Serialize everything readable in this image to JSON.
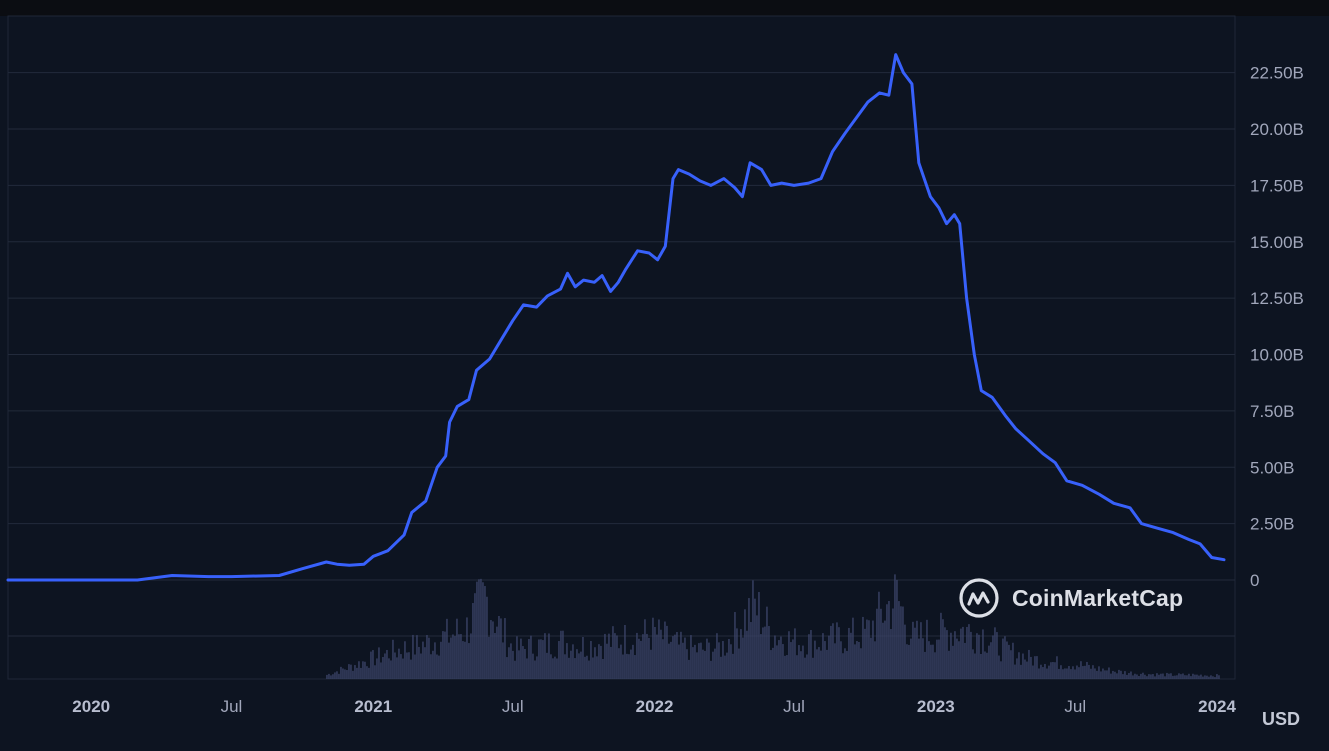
{
  "brand": {
    "watermark_text": "CoinMarketCap",
    "logo_icon": "coinmarketcap-logo-icon"
  },
  "currency_label": "USD",
  "colors": {
    "background": "#0d1421",
    "line": "#3861fb",
    "volume": "#3a4366",
    "grid": "#222a3b",
    "text": "#a1a7bb"
  },
  "chart_data": {
    "type": "line",
    "title": "",
    "xlabel": "",
    "ylabel": "",
    "y_unit": "USD",
    "ylim": [
      0,
      24000000000
    ],
    "x_range": [
      "2019-09-15",
      "2024-01-10"
    ],
    "grid": true,
    "y_ticks": [
      {
        "value": 0,
        "label": "0"
      },
      {
        "value": 2500000000,
        "label": "2.50B"
      },
      {
        "value": 5000000000,
        "label": "5.00B"
      },
      {
        "value": 7500000000,
        "label": "7.50B"
      },
      {
        "value": 10000000000,
        "label": "10.00B"
      },
      {
        "value": 12500000000,
        "label": "12.50B"
      },
      {
        "value": 15000000000,
        "label": "15.00B"
      },
      {
        "value": 17500000000,
        "label": "17.50B"
      },
      {
        "value": 20000000000,
        "label": "20.00B"
      },
      {
        "value": 22500000000,
        "label": "22.50B"
      }
    ],
    "x_ticks": [
      {
        "date": "2020-01-01",
        "label": "2020",
        "major": true
      },
      {
        "date": "2020-07-01",
        "label": "Jul",
        "major": false
      },
      {
        "date": "2021-01-01",
        "label": "2021",
        "major": true
      },
      {
        "date": "2021-07-01",
        "label": "Jul",
        "major": false
      },
      {
        "date": "2022-01-01",
        "label": "2022",
        "major": true
      },
      {
        "date": "2022-07-01",
        "label": "Jul",
        "major": false
      },
      {
        "date": "2023-01-01",
        "label": "2023",
        "major": true
      },
      {
        "date": "2023-07-01",
        "label": "Jul",
        "major": false
      },
      {
        "date": "2024-01-01",
        "label": "2024",
        "major": true
      }
    ],
    "series": [
      {
        "values": [
          [
            "2019-09-15",
            0.0
          ],
          [
            "2019-12-01",
            0.0
          ],
          [
            "2020-03-01",
            0.0
          ],
          [
            "2020-04-15",
            0.2
          ],
          [
            "2020-06-01",
            0.15
          ],
          [
            "2020-07-01",
            0.15
          ],
          [
            "2020-09-01",
            0.2
          ],
          [
            "2020-10-01",
            0.5
          ],
          [
            "2020-11-01",
            0.8
          ],
          [
            "2020-11-15",
            0.7
          ],
          [
            "2020-12-01",
            0.65
          ],
          [
            "2020-12-20",
            0.7
          ],
          [
            "2021-01-01",
            1.05
          ],
          [
            "2021-01-20",
            1.3
          ],
          [
            "2021-02-10",
            2.0
          ],
          [
            "2021-02-20",
            3.0
          ],
          [
            "2021-03-10",
            3.5
          ],
          [
            "2021-03-25",
            5.0
          ],
          [
            "2021-04-05",
            5.5
          ],
          [
            "2021-04-10",
            7.0
          ],
          [
            "2021-04-20",
            7.7
          ],
          [
            "2021-05-05",
            8.0
          ],
          [
            "2021-05-15",
            9.3
          ],
          [
            "2021-06-01",
            9.8
          ],
          [
            "2021-06-15",
            10.6
          ],
          [
            "2021-07-01",
            11.5
          ],
          [
            "2021-07-15",
            12.2
          ],
          [
            "2021-08-01",
            12.1
          ],
          [
            "2021-08-15",
            12.6
          ],
          [
            "2021-09-01",
            12.9
          ],
          [
            "2021-09-10",
            13.6
          ],
          [
            "2021-09-20",
            13.0
          ],
          [
            "2021-10-01",
            13.3
          ],
          [
            "2021-10-15",
            13.2
          ],
          [
            "2021-10-25",
            13.5
          ],
          [
            "2021-11-05",
            12.8
          ],
          [
            "2021-11-15",
            13.2
          ],
          [
            "2021-11-25",
            13.8
          ],
          [
            "2021-12-10",
            14.6
          ],
          [
            "2021-12-25",
            14.5
          ],
          [
            "2022-01-05",
            14.2
          ],
          [
            "2022-01-15",
            14.8
          ],
          [
            "2022-01-25",
            17.8
          ],
          [
            "2022-02-01",
            18.2
          ],
          [
            "2022-02-15",
            18.0
          ],
          [
            "2022-03-01",
            17.7
          ],
          [
            "2022-03-15",
            17.5
          ],
          [
            "2022-04-01",
            17.8
          ],
          [
            "2022-04-15",
            17.4
          ],
          [
            "2022-04-25",
            17.0
          ],
          [
            "2022-05-05",
            18.5
          ],
          [
            "2022-05-20",
            18.2
          ],
          [
            "2022-06-01",
            17.5
          ],
          [
            "2022-06-15",
            17.6
          ],
          [
            "2022-07-01",
            17.5
          ],
          [
            "2022-07-20",
            17.6
          ],
          [
            "2022-08-05",
            17.8
          ],
          [
            "2022-08-20",
            19.0
          ],
          [
            "2022-09-05",
            19.8
          ],
          [
            "2022-09-20",
            20.5
          ],
          [
            "2022-10-05",
            21.2
          ],
          [
            "2022-10-20",
            21.6
          ],
          [
            "2022-11-01",
            21.5
          ],
          [
            "2022-11-10",
            23.3
          ],
          [
            "2022-11-20",
            22.5
          ],
          [
            "2022-12-01",
            22.0
          ],
          [
            "2022-12-10",
            18.5
          ],
          [
            "2022-12-25",
            17.0
          ],
          [
            "2023-01-05",
            16.5
          ],
          [
            "2023-01-15",
            15.8
          ],
          [
            "2023-01-25",
            16.2
          ],
          [
            "2023-02-01",
            15.8
          ],
          [
            "2023-02-10",
            12.5
          ],
          [
            "2023-02-20",
            10.0
          ],
          [
            "2023-03-01",
            8.4
          ],
          [
            "2023-03-15",
            8.1
          ],
          [
            "2023-04-01",
            7.3
          ],
          [
            "2023-04-15",
            6.7
          ],
          [
            "2023-05-01",
            6.2
          ],
          [
            "2023-05-20",
            5.6
          ],
          [
            "2023-06-05",
            5.2
          ],
          [
            "2023-06-20",
            4.4
          ],
          [
            "2023-07-10",
            4.2
          ],
          [
            "2023-08-01",
            3.8
          ],
          [
            "2023-08-20",
            3.4
          ],
          [
            "2023-09-10",
            3.2
          ],
          [
            "2023-09-25",
            2.5
          ],
          [
            "2023-10-15",
            2.3
          ],
          [
            "2023-11-05",
            2.1
          ],
          [
            "2023-11-25",
            1.8
          ],
          [
            "2023-12-10",
            1.6
          ],
          [
            "2023-12-25",
            1.0
          ],
          [
            "2024-01-10",
            0.9
          ]
        ],
        "value_multiplier": 1000000000
      }
    ],
    "volume_note_scale": "relative",
    "volume": [
      [
        "2020-11-01",
        0.05
      ],
      [
        "2021-01-01",
        0.25
      ],
      [
        "2021-02-01",
        0.35
      ],
      [
        "2021-03-01",
        0.4
      ],
      [
        "2021-04-01",
        0.5
      ],
      [
        "2021-05-01",
        0.6
      ],
      [
        "2021-05-25",
        1.0
      ],
      [
        "2021-06-15",
        0.6
      ],
      [
        "2021-07-01",
        0.35
      ],
      [
        "2021-08-01",
        0.4
      ],
      [
        "2021-09-01",
        0.45
      ],
      [
        "2021-10-01",
        0.4
      ],
      [
        "2021-11-01",
        0.45
      ],
      [
        "2021-12-01",
        0.5
      ],
      [
        "2022-01-01",
        0.55
      ],
      [
        "2022-02-01",
        0.4
      ],
      [
        "2022-03-01",
        0.35
      ],
      [
        "2022-04-01",
        0.4
      ],
      [
        "2022-05-10",
        0.9
      ],
      [
        "2022-06-01",
        0.55
      ],
      [
        "2022-07-01",
        0.45
      ],
      [
        "2022-08-01",
        0.45
      ],
      [
        "2022-09-01",
        0.5
      ],
      [
        "2022-10-01",
        0.55
      ],
      [
        "2022-11-10",
        1.0
      ],
      [
        "2022-12-01",
        0.5
      ],
      [
        "2023-01-01",
        0.55
      ],
      [
        "2023-02-01",
        0.6
      ],
      [
        "2023-03-01",
        0.55
      ],
      [
        "2023-04-01",
        0.35
      ],
      [
        "2023-05-01",
        0.25
      ],
      [
        "2023-06-01",
        0.2
      ],
      [
        "2023-07-01",
        0.18
      ],
      [
        "2023-08-01",
        0.12
      ],
      [
        "2023-09-01",
        0.08
      ],
      [
        "2023-10-01",
        0.06
      ],
      [
        "2023-11-01",
        0.05
      ],
      [
        "2023-12-01",
        0.05
      ],
      [
        "2024-01-05",
        0.04
      ]
    ]
  }
}
